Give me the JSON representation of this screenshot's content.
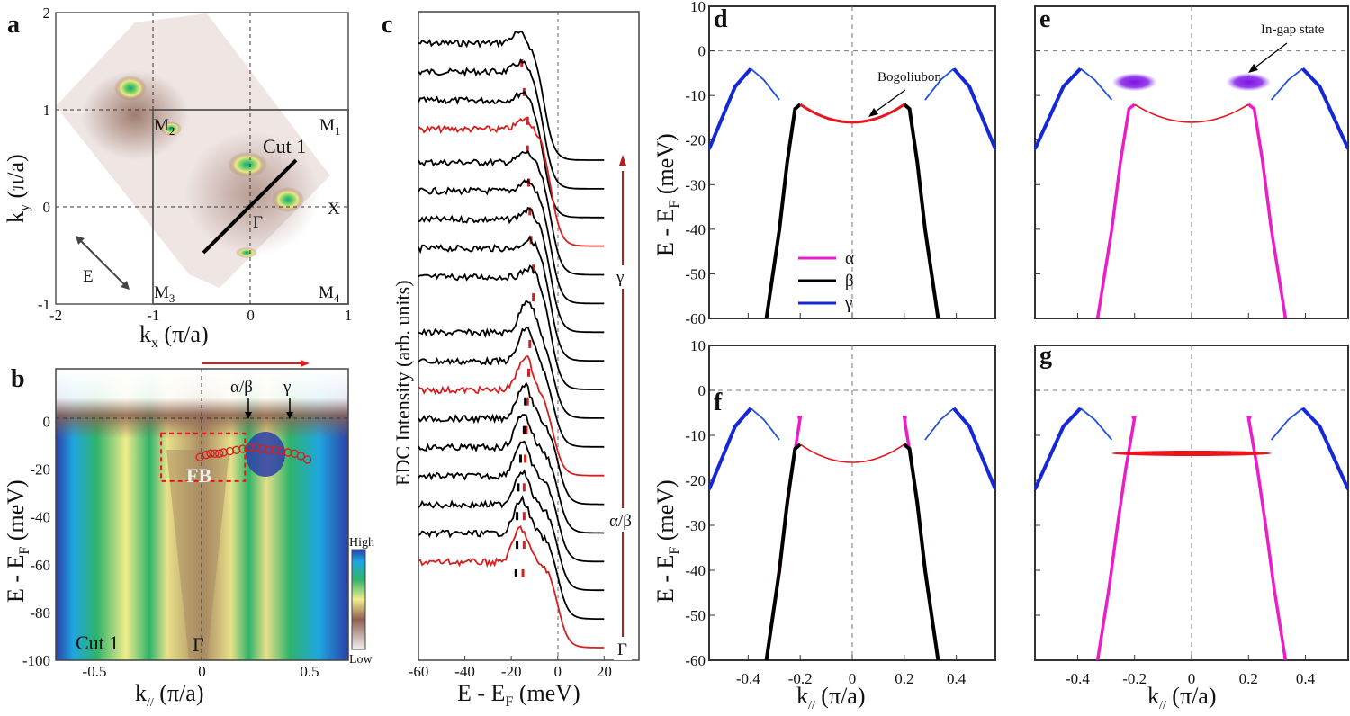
{
  "figure": {
    "panels": [
      "a",
      "b",
      "c",
      "d",
      "e",
      "f",
      "g"
    ]
  },
  "chart_data": [
    {
      "panel": "a",
      "type": "heatmap",
      "title": "",
      "xlabel": "k_x (π/a)",
      "ylabel": "k_y (π/a)",
      "xlim": [
        -2,
        1
      ],
      "ylim": [
        -1,
        2
      ],
      "xticks": [
        "-2",
        "-1",
        "0",
        "1"
      ],
      "yticks": [
        "-1",
        "0",
        "1",
        "2"
      ],
      "point_labels": [
        {
          "text": "M2",
          "x": -1,
          "y": 1
        },
        {
          "text": "M1",
          "x": 1,
          "y": 1
        },
        {
          "text": "M3",
          "x": -1,
          "y": -1
        },
        {
          "text": "M4",
          "x": 1,
          "y": -1
        },
        {
          "text": "X",
          "x": 1,
          "y": 0
        },
        {
          "text": "Γ",
          "x": 0,
          "y": 0
        }
      ],
      "cut": {
        "label": "Cut 1",
        "from": [
          -0.48,
          -0.47
        ],
        "to": [
          0.48,
          0.47
        ]
      },
      "polarization_label": "E",
      "hotspots": [
        {
          "x": -1.25,
          "y": 1.22
        },
        {
          "x": -0.83,
          "y": 0.8
        },
        {
          "x": 0.0,
          "y": 0.44
        },
        {
          "x": 0.45,
          "y": 0.1
        },
        {
          "x": 0.0,
          "y": -0.47
        }
      ]
    },
    {
      "panel": "b",
      "type": "heatmap",
      "xlabel": "k_// (π/a)",
      "ylabel": "E - E_F (meV)",
      "xlim": [
        -0.68,
        0.68
      ],
      "ylim": [
        -100,
        22
      ],
      "xticks": [
        "-0.5",
        "0",
        "0.5"
      ],
      "yticks": [
        "-100",
        "-80",
        "-60",
        "-40",
        "-20",
        "0"
      ],
      "annotations": [
        "α/β",
        "γ",
        "FB",
        "Cut 1",
        "Γ"
      ],
      "arrow_labels": [
        {
          "text": "α/β",
          "k": 0.22
        },
        {
          "text": "γ",
          "k": 0.41
        }
      ],
      "fb_box": {
        "k": [
          -0.19,
          0.2
        ],
        "E": [
          -25,
          -5
        ]
      },
      "colorbar": {
        "high": "High",
        "low": "Low",
        "colors": [
          "#2b3fa8",
          "#1fa6e0",
          "#2fb36a",
          "#f2ec8c",
          "#8c6252",
          "#f3eeee"
        ]
      },
      "fit_points_k": [
        -0.01,
        0.02,
        0.04,
        0.06,
        0.08,
        0.1,
        0.13,
        0.16,
        0.19,
        0.22,
        0.25,
        0.28,
        0.31,
        0.34,
        0.37,
        0.4,
        0.43,
        0.46,
        0.49
      ],
      "fit_points_E": [
        -15,
        -14,
        -13.5,
        -13.5,
        -13.5,
        -13,
        -12.5,
        -12,
        -11.5,
        -11,
        -11,
        -11.5,
        -12,
        -12,
        -12.5,
        -13,
        -13.5,
        -14.5,
        -16
      ]
    },
    {
      "panel": "c",
      "type": "line",
      "xlabel": "E - E_F (meV)",
      "ylabel": "EDC Intensity (arb. units)",
      "xlim": [
        -60,
        35
      ],
      "xticks": [
        "-60",
        "-40",
        "-20",
        "0",
        "20"
      ],
      "side_labels": [
        "γ",
        "α/β",
        "Γ"
      ],
      "curve_count": 18,
      "red_curves": [
        3,
        11,
        17
      ],
      "red_peak_marks_E": [
        -15.5,
        -14.5,
        -13,
        -13,
        -12.5,
        -12,
        -11.5,
        -10.5,
        -10.5,
        -12,
        -12.5,
        -13,
        -13.5,
        -14,
        -14.5,
        -14.5,
        -14.5,
        -15
      ],
      "black_peak_marks_E": [
        null,
        null,
        null,
        null,
        null,
        null,
        null,
        null,
        null,
        null,
        null,
        -14,
        -14.5,
        -16,
        -17,
        -17.5,
        -17.5,
        -18
      ]
    },
    {
      "panel": "d",
      "type": "line",
      "xlabel": "",
      "ylabel": "E - E_F (meV)",
      "xlim": [
        -0.55,
        0.55
      ],
      "ylim": [
        -60,
        10
      ],
      "yticks": [
        "-60",
        "-50",
        "-40",
        "-30",
        "-20",
        "-10",
        "0",
        "10"
      ],
      "legend": [
        {
          "name": "α",
          "color": "#e91ec8"
        },
        {
          "name": "β",
          "color": "#000000"
        },
        {
          "name": "γ",
          "color": "#1428d8"
        }
      ],
      "legend_placement": "bottom-left",
      "annotation": "Bogoliubon",
      "series": [
        "gamma",
        "beta",
        "bogoliubon"
      ]
    },
    {
      "panel": "e",
      "type": "line",
      "xlim": [
        -0.55,
        0.55
      ],
      "ylim": [
        -60,
        10
      ],
      "annotation": "In-gap state",
      "in_gap_state": {
        "k": [
          -0.2,
          0.2
        ],
        "E": -7
      },
      "series": [
        "gamma",
        "alpha",
        "bogoliubon"
      ]
    },
    {
      "panel": "f",
      "type": "line",
      "xlabel": "k_// (π/a)",
      "ylabel": "E - E_F (meV)",
      "xlim": [
        -0.55,
        0.55
      ],
      "ylim": [
        -60,
        10
      ],
      "xticks": [
        "-0.4",
        "-0.2",
        "0",
        "0.2",
        "0.4"
      ],
      "yticks": [
        "-60",
        "-50",
        "-40",
        "-30",
        "-20",
        "-10",
        "0",
        "10"
      ],
      "series": [
        "gamma",
        "alpha_hook",
        "beta",
        "bogoliubon"
      ]
    },
    {
      "panel": "g",
      "type": "line",
      "xlabel": "k_// (π/a)",
      "xlim": [
        -0.55,
        0.55
      ],
      "ylim": [
        -60,
        10
      ],
      "xticks": [
        "-0.4",
        "-0.2",
        "0",
        "0.2",
        "0.4"
      ],
      "flat_band": {
        "k": [
          -0.28,
          0.28
        ],
        "E": -14
      },
      "series": [
        "gamma",
        "alpha_hook",
        "flat_band"
      ]
    }
  ],
  "bands": {
    "gamma": {
      "k": [
        0.28,
        0.34,
        0.39,
        0.45,
        0.55
      ],
      "E": [
        -11,
        -6.5,
        -4,
        -8,
        -22
      ],
      "color": "#1428d8"
    },
    "beta": {
      "k": [
        0.2,
        0.22,
        0.25,
        0.28,
        0.33
      ],
      "E": [
        -12,
        -13,
        -25,
        -40,
        -60
      ],
      "color": "#000000"
    },
    "alpha": {
      "k": [
        0.2,
        0.22,
        0.25,
        0.28,
        0.33
      ],
      "E": [
        -12,
        -13,
        -25,
        -40,
        -60
      ],
      "color": "#e91ec8"
    },
    "alpha_hook": {
      "k": [
        0.21,
        0.2,
        0.205,
        0.23,
        0.26,
        0.29,
        0.33
      ],
      "E": [
        -6,
        -6,
        -8,
        -17,
        -30,
        -44,
        -60
      ],
      "color": "#e91ec8"
    },
    "bogoliubon": {
      "k0": 0.2,
      "E_edge": -12,
      "E_center": -16,
      "color": "#e8141e"
    }
  },
  "text": {
    "a_label": "a",
    "b_label": "b",
    "c_label": "c",
    "d_label": "d",
    "e_label": "e",
    "f_label": "f",
    "g_label": "g",
    "a_xlabel": "k",
    "a_xlabel_sub": "x",
    "a_xlabel_unit": " (π/a)",
    "a_ylabel": "k",
    "a_ylabel_sub": "y",
    "a_ylabel_unit": " (π/a)",
    "b_xlabel": "k",
    "b_xlabel_sub": "//",
    "b_xlabel_unit": " (π/a)",
    "E_label": "E - E",
    "E_sub": "F",
    "E_unit": " (meV)",
    "c_ylabel": "EDC Intensity (arb. units)",
    "cut1": "Cut 1",
    "E_pol": "E",
    "gamma_pt": "Γ",
    "X_pt": "X",
    "M1": "M",
    "M2": "M",
    "M3": "M",
    "M4": "M",
    "M1s": "1",
    "M2s": "2",
    "M3s": "3",
    "M4s": "4",
    "ab": "α/β",
    "g": "γ",
    "FB": "FB",
    "high": "High",
    "low": "Low",
    "bogoliubon": "Bogoliubon",
    "ingap": "In-gap state",
    "leg_a": "α",
    "leg_b": "β",
    "leg_g": "γ"
  }
}
